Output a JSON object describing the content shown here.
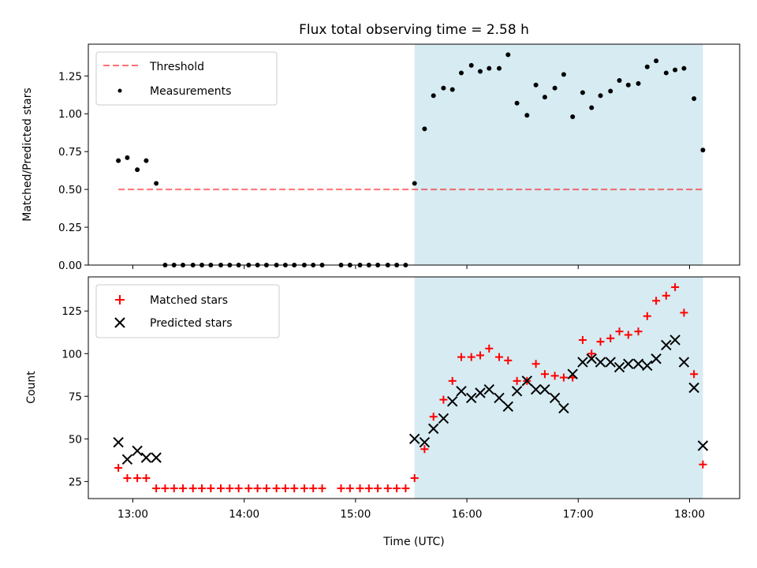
{
  "chart_data": [
    {
      "type": "scatter",
      "title": "Flux total observing time = 2.58 h",
      "xlabel": "",
      "ylabel": "Matched/Predicted stars",
      "xlim": [
        12.6,
        18.45
      ],
      "ylim": [
        0,
        1.46
      ],
      "yticks": [
        0.0,
        0.25,
        0.5,
        0.75,
        1.0,
        1.25
      ],
      "ytick_labels": [
        "0.00",
        "0.25",
        "0.50",
        "0.75",
        "1.00",
        "1.25"
      ],
      "xticks": [
        13,
        14,
        15,
        16,
        17,
        18
      ],
      "shaded_region": {
        "x_start": 15.53,
        "x_end": 18.12,
        "color": "#add8e6"
      },
      "threshold": {
        "name": "Threshold",
        "value": 0.5,
        "x_range": [
          12.87,
          18.12
        ],
        "color": "#ff0000"
      },
      "legend": {
        "placement": "top-left",
        "entries": [
          "Threshold",
          "Measurements"
        ]
      },
      "series": [
        {
          "name": "Measurements",
          "marker": "dot",
          "color": "#000000",
          "x": [
            12.87,
            12.95,
            13.04,
            13.12,
            13.21,
            13.29,
            13.37,
            13.45,
            13.54,
            13.62,
            13.7,
            13.79,
            13.87,
            13.95,
            14.04,
            14.12,
            14.2,
            14.29,
            14.37,
            14.45,
            14.54,
            14.62,
            14.7,
            14.87,
            14.95,
            15.04,
            15.12,
            15.2,
            15.29,
            15.37,
            15.45,
            15.53,
            15.62,
            15.7,
            15.79,
            15.87,
            15.95,
            16.04,
            16.12,
            16.2,
            16.29,
            16.37,
            16.45,
            16.54,
            16.62,
            16.7,
            16.79,
            16.87,
            16.95,
            17.04,
            17.12,
            17.2,
            17.29,
            17.37,
            17.45,
            17.54,
            17.62,
            17.7,
            17.79,
            17.87,
            17.95,
            18.04,
            18.12
          ],
          "y": [
            0.69,
            0.71,
            0.63,
            0.69,
            0.54,
            0,
            0,
            0,
            0,
            0,
            0,
            0,
            0,
            0,
            0,
            0,
            0,
            0,
            0,
            0,
            0,
            0,
            0,
            0,
            0,
            0,
            0,
            0,
            0,
            0,
            0,
            0.54,
            0.9,
            1.12,
            1.17,
            1.16,
            1.27,
            1.32,
            1.28,
            1.3,
            1.3,
            1.39,
            1.07,
            0.99,
            1.19,
            1.11,
            1.17,
            1.26,
            0.98,
            1.14,
            1.04,
            1.12,
            1.15,
            1.22,
            1.19,
            1.2,
            1.31,
            1.35,
            1.27,
            1.29,
            1.3,
            1.1,
            0.76
          ]
        }
      ]
    },
    {
      "type": "scatter",
      "title": "",
      "xlabel": "Time (UTC)",
      "ylabel": "Count",
      "xlim": [
        12.6,
        18.45
      ],
      "ylim": [
        15,
        145
      ],
      "yticks": [
        25,
        50,
        75,
        100,
        125
      ],
      "ytick_labels": [
        "25",
        "50",
        "75",
        "100",
        "125"
      ],
      "xticks": [
        13,
        14,
        15,
        16,
        17,
        18
      ],
      "xtick_labels": [
        "13:00",
        "14:00",
        "15:00",
        "16:00",
        "17:00",
        "18:00"
      ],
      "shaded_region": {
        "x_start": 15.53,
        "x_end": 18.12,
        "color": "#add8e6"
      },
      "legend": {
        "placement": "top-left",
        "entries": [
          "Matched stars",
          "Predicted stars"
        ]
      },
      "series": [
        {
          "name": "Matched stars",
          "marker": "plus",
          "color": "#ff0000",
          "x": [
            12.87,
            12.95,
            13.04,
            13.12,
            13.21,
            13.29,
            13.37,
            13.45,
            13.54,
            13.62,
            13.7,
            13.79,
            13.87,
            13.95,
            14.04,
            14.12,
            14.2,
            14.29,
            14.37,
            14.45,
            14.54,
            14.62,
            14.7,
            14.87,
            14.95,
            15.04,
            15.12,
            15.2,
            15.29,
            15.37,
            15.45,
            15.53,
            15.62,
            15.7,
            15.79,
            15.87,
            15.95,
            16.04,
            16.12,
            16.2,
            16.29,
            16.37,
            16.45,
            16.54,
            16.62,
            16.7,
            16.79,
            16.87,
            16.95,
            17.04,
            17.12,
            17.2,
            17.29,
            17.37,
            17.45,
            17.54,
            17.62,
            17.7,
            17.79,
            17.87,
            17.95,
            18.04,
            18.12
          ],
          "y": [
            33,
            27,
            27,
            27,
            21,
            21,
            21,
            21,
            21,
            21,
            21,
            21,
            21,
            21,
            21,
            21,
            21,
            21,
            21,
            21,
            21,
            21,
            21,
            21,
            21,
            21,
            21,
            21,
            21,
            21,
            21,
            27,
            44,
            63,
            73,
            84,
            98,
            98,
            99,
            103,
            98,
            96,
            84,
            84,
            94,
            88,
            87,
            86,
            86,
            108,
            100,
            107,
            109,
            113,
            111,
            113,
            122,
            131,
            134,
            139,
            124,
            88,
            35
          ]
        },
        {
          "name": "Predicted stars",
          "marker": "x",
          "color": "#000000",
          "x": [
            12.87,
            12.95,
            13.04,
            13.12,
            13.21,
            15.53,
            15.62,
            15.7,
            15.79,
            15.87,
            15.95,
            16.04,
            16.12,
            16.2,
            16.29,
            16.37,
            16.45,
            16.54,
            16.62,
            16.7,
            16.79,
            16.87,
            16.95,
            17.04,
            17.12,
            17.2,
            17.29,
            17.37,
            17.45,
            17.54,
            17.62,
            17.7,
            17.79,
            17.87,
            17.95,
            18.04,
            18.12
          ],
          "y": [
            48,
            38,
            43,
            39,
            39,
            50,
            48,
            56,
            62,
            72,
            78,
            74,
            77,
            79,
            74,
            69,
            78,
            84,
            79,
            79,
            74,
            68,
            88,
            95,
            97,
            95,
            95,
            92,
            94,
            94,
            93,
            97,
            105,
            108,
            95,
            80,
            46
          ]
        }
      ]
    }
  ]
}
